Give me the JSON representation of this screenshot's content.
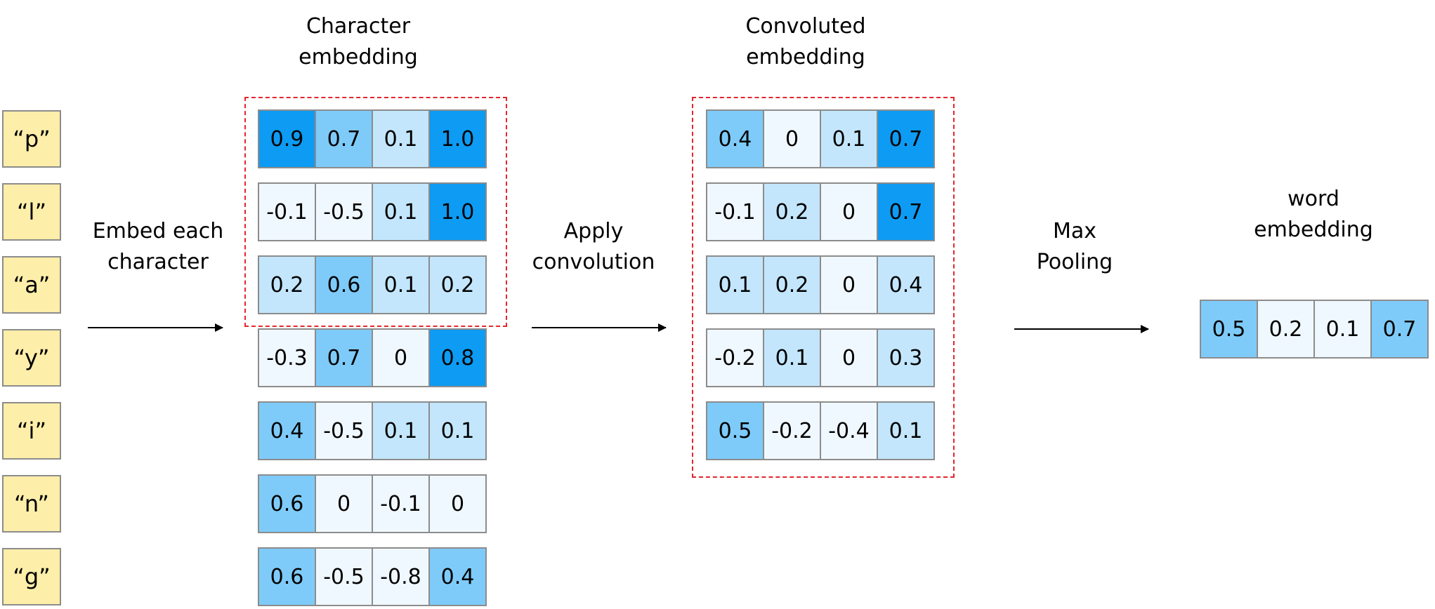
{
  "characters": [
    "“p”",
    "“l”",
    "“a”",
    "“y”",
    "“i”",
    "“n”",
    "“g”"
  ],
  "labels": {
    "character_embedding": [
      "Character",
      "embedding"
    ],
    "convoluted_embedding": [
      "Convoluted",
      "embedding"
    ],
    "word_embedding": [
      "word",
      "embedding"
    ],
    "embed_each": [
      "Embed each",
      "character"
    ],
    "apply_conv": [
      "Apply",
      "convolution"
    ],
    "max_pool": [
      "Max",
      "Pooling"
    ]
  },
  "colors": {
    "char_box": "#fdeeaa",
    "level0": "#f0f8ff",
    "level1": "#c3e6fc",
    "level2": "#7ecbf9",
    "level3": "#0d9bf3",
    "dashed_box": "#e3262e"
  },
  "char_embedding": [
    {
      "values": [
        "0.9",
        "0.7",
        "0.1",
        "1.0"
      ],
      "shades": [
        3,
        2,
        1,
        3
      ]
    },
    {
      "values": [
        "-0.1",
        "-0.5",
        "0.1",
        "1.0"
      ],
      "shades": [
        0,
        0,
        1,
        3
      ]
    },
    {
      "values": [
        "0.2",
        "0.6",
        "0.1",
        "0.2"
      ],
      "shades": [
        1,
        2,
        1,
        1
      ]
    },
    {
      "values": [
        "-0.3",
        "0.7",
        "0",
        "0.8"
      ],
      "shades": [
        0,
        2,
        0,
        3
      ]
    },
    {
      "values": [
        "0.4",
        "-0.5",
        "0.1",
        "0.1"
      ],
      "shades": [
        2,
        0,
        1,
        1
      ]
    },
    {
      "values": [
        "0.6",
        "0",
        "-0.1",
        "0"
      ],
      "shades": [
        2,
        0,
        0,
        0
      ]
    },
    {
      "values": [
        "0.6",
        "-0.5",
        "-0.8",
        "0.4"
      ],
      "shades": [
        2,
        0,
        0,
        2
      ]
    }
  ],
  "conv_embedding": [
    {
      "values": [
        "0.4",
        "0",
        "0.1",
        "0.7"
      ],
      "shades": [
        2,
        0,
        1,
        3
      ]
    },
    {
      "values": [
        "-0.1",
        "0.2",
        "0",
        "0.7"
      ],
      "shades": [
        0,
        1,
        0,
        3
      ]
    },
    {
      "values": [
        "0.1",
        "0.2",
        "0",
        "0.4"
      ],
      "shades": [
        1,
        1,
        0,
        1
      ]
    },
    {
      "values": [
        "-0.2",
        "0.1",
        "0",
        "0.3"
      ],
      "shades": [
        0,
        1,
        0,
        1
      ]
    },
    {
      "values": [
        "0.5",
        "-0.2",
        "-0.4",
        "0.1"
      ],
      "shades": [
        2,
        0,
        0,
        1
      ]
    }
  ],
  "word_embedding": {
    "values": [
      "0.5",
      "0.2",
      "0.1",
      "0.7"
    ],
    "shades": [
      2,
      0,
      0,
      2
    ]
  }
}
